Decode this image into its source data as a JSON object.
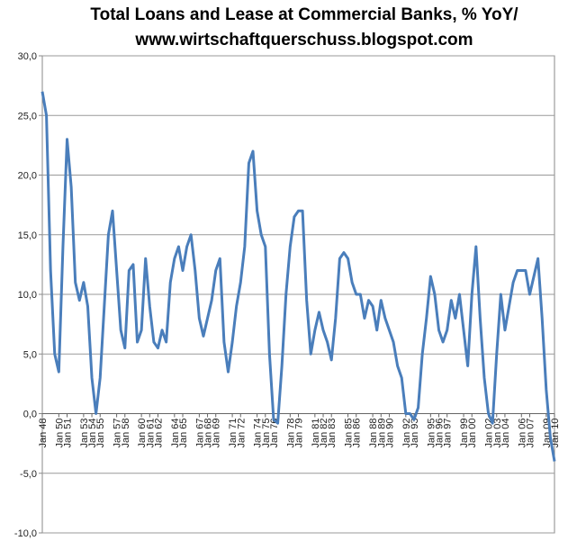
{
  "chart_data": {
    "type": "line",
    "title": "Total Loans and Lease at Commercial Banks, % YoY/",
    "subtitle": "www.wirtschaftquerschuss.blogspot.com",
    "categories": [
      "Jan 48",
      null,
      null,
      null,
      "Jan 50",
      null,
      "Jan 51",
      null,
      null,
      null,
      "Jan 53",
      null,
      "Jan 54",
      null,
      "Jan 55",
      null,
      null,
      null,
      "Jan 57",
      null,
      "Jan 58",
      null,
      null,
      null,
      "Jan 60",
      null,
      "Jan 61",
      null,
      "Jan 62",
      null,
      null,
      null,
      "Jan 64",
      null,
      "Jan 65",
      null,
      null,
      null,
      "Jan 67",
      null,
      "Jan 68",
      null,
      "Jan 69",
      null,
      null,
      null,
      "Jan 71",
      null,
      "Jan 72",
      null,
      null,
      null,
      "Jan 74",
      null,
      "Jan 75",
      null,
      "Jan 76",
      null,
      null,
      null,
      "Jan 78",
      null,
      "Jan 79",
      null,
      null,
      null,
      "Jan 81",
      null,
      "Jan 82",
      null,
      "Jan 83",
      null,
      null,
      null,
      "Jan 85",
      null,
      "Jan 86",
      null,
      null,
      null,
      "Jan 88",
      null,
      "Jan 89",
      null,
      "Jan 90",
      null,
      null,
      null,
      "Jan 92",
      null,
      "Jan 93",
      null,
      null,
      null,
      "Jan 95",
      null,
      "Jan 96",
      null,
      "Jan 97",
      null,
      null,
      null,
      "Jan 99",
      null,
      "Jan 00",
      null,
      null,
      null,
      "Jan 02",
      null,
      "Jan 03",
      null,
      "Jan 04",
      null,
      null,
      null,
      "Jan 06",
      null,
      "Jan 07",
      null,
      null,
      null,
      "Jan 09",
      null,
      "Jan 10"
    ],
    "series": [
      {
        "color": "#4a7ebb",
        "values": [
          27,
          25,
          12,
          5,
          3.5,
          14,
          23,
          19,
          11,
          9.5,
          11,
          9,
          3,
          0,
          3,
          9,
          15,
          17,
          12,
          7,
          5.5,
          12,
          12.5,
          6,
          7,
          13,
          9,
          6,
          5.5,
          7,
          6,
          11,
          13,
          14,
          12,
          14,
          15,
          12,
          8,
          6.5,
          8,
          9.5,
          12,
          13,
          6,
          3.5,
          6,
          9,
          11,
          14,
          21,
          22,
          17,
          15,
          14,
          5,
          -0.5,
          -0.8,
          4,
          10,
          14,
          16.5,
          17,
          17,
          9.5,
          5,
          7,
          8.5,
          7,
          6,
          4.5,
          8,
          13,
          13.5,
          13,
          11,
          10,
          10,
          8,
          9.5,
          9,
          7,
          9.5,
          8,
          7,
          6,
          4,
          3,
          0,
          0,
          -0.5,
          0.5,
          5,
          8,
          11.5,
          10,
          7,
          6,
          7,
          9.5,
          8,
          10,
          7,
          4,
          10,
          14,
          8,
          3,
          0,
          -0.8,
          5,
          10,
          7,
          9,
          11,
          12,
          12,
          12,
          10,
          11.5,
          13,
          8,
          2,
          -2,
          -4
        ]
      }
    ],
    "ylim": [
      -10,
      30
    ],
    "yticks": [
      {
        "value": -10,
        "label": "-10,0"
      },
      {
        "value": -5,
        "label": "-5,0"
      },
      {
        "value": 0,
        "label": "0,0"
      },
      {
        "value": 5,
        "label": "5,0"
      },
      {
        "value": 10,
        "label": "10,0"
      },
      {
        "value": 15,
        "label": "15,0"
      },
      {
        "value": 20,
        "label": "20,0"
      },
      {
        "value": 25,
        "label": "25,0"
      },
      {
        "value": 30,
        "label": "30,0"
      }
    ],
    "grid": true
  }
}
